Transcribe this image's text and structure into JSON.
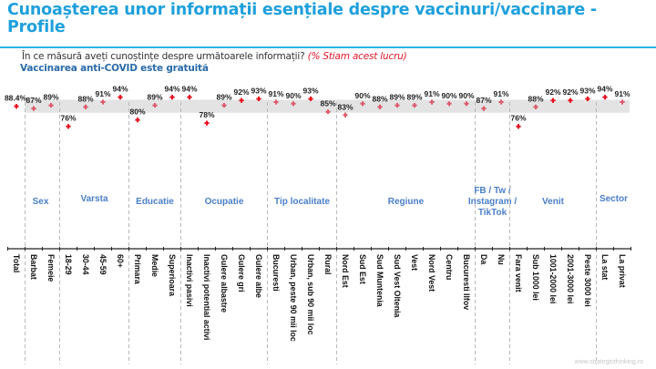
{
  "header": {
    "title": "Cunoașterea unor informații esențiale despre vaccinuri/vaccinare - Profile",
    "question": "În ce măsură aveți cunoștințe despre următoarele informații?",
    "question_highlight": "(% Stiam acest lucru)",
    "item": "Vaccinarea anti-COVID este gratuită"
  },
  "footer": {
    "source": "www.strategicthinking.ro"
  },
  "colors": {
    "title": "#1ea0dc",
    "outlier_dot": "#e8101e",
    "normal_dot": "#dc5a6c",
    "band": "#e3e3e3",
    "group_label": "#4a7fc8"
  },
  "chart_data": {
    "type": "scatter",
    "title": "Vaccinarea anti-COVID este gratuită",
    "ylabel": "% Stiam acest lucru",
    "ylim": [
      70,
      100
    ],
    "band": [
      84.4,
      92.4
    ],
    "groups": [
      {
        "name": "",
        "from": 0,
        "to": 0
      },
      {
        "name": "Sex",
        "from": 1,
        "to": 2
      },
      {
        "name": "Varsta",
        "from": 3,
        "to": 6
      },
      {
        "name": "Educatie",
        "from": 7,
        "to": 9
      },
      {
        "name": "Ocupatie",
        "from": 10,
        "to": 14
      },
      {
        "name": "Tip localitate",
        "from": 15,
        "to": 18
      },
      {
        "name": "Regiune",
        "from": 19,
        "to": 26
      },
      {
        "name": "FB / Tw / Instagram / TikTok",
        "from": 27,
        "to": 28
      },
      {
        "name": "Venit",
        "from": 29,
        "to": 33
      },
      {
        "name": "Sector",
        "from": 34,
        "to": 35
      }
    ],
    "categories": [
      "Total",
      "Barbat",
      "Femeie",
      "18-29",
      "30-44",
      "45-59",
      "60+",
      "Primara",
      "Medie",
      "Superioara",
      "Inactivi pasivi",
      "Inactivi potential activi",
      "Gulere albastre",
      "Gulere gri",
      "Gulere albe",
      "Bucuresti",
      "Urban, peste 90 mii loc",
      "Urban, sub 90 mii loc",
      "Rural",
      "Nord Est",
      "Sud Est",
      "Sud Muntenia",
      "Sud Vest Oltenia",
      "Vest",
      "Nord Vest",
      "Centru",
      "Bucuresti Ilfov",
      "Da",
      "Nu",
      "Fara venit",
      "Sub 1000 lei",
      "1001-2000 lei",
      "2001-3000 lei",
      "Peste 3000 lei",
      "La stat",
      "La privat"
    ],
    "values": [
      88.4,
      87,
      89,
      76,
      88,
      91,
      94,
      80,
      89,
      94,
      94,
      78,
      89,
      92,
      93,
      91,
      90,
      93,
      85,
      83,
      90,
      88,
      89,
      89,
      91,
      90,
      90,
      87,
      91,
      76,
      88,
      92,
      92,
      93,
      94,
      91
    ],
    "labels": [
      "88.4%",
      "87%",
      "89%",
      "76%",
      "88%",
      "91%",
      "94%",
      "80%",
      "89%",
      "94%",
      "94%",
      "78%",
      "89%",
      "92%",
      "93%",
      "91%",
      "90%",
      "93%",
      "85%",
      "83%",
      "90%",
      "88%",
      "89%",
      "89%",
      "91%",
      "90%",
      "90%",
      "87%",
      "91%",
      "76%",
      "88%",
      "92%",
      "92%",
      "93%",
      "94%",
      "91%"
    ],
    "highlight": [
      true,
      false,
      false,
      true,
      false,
      false,
      true,
      true,
      false,
      true,
      true,
      true,
      false,
      true,
      true,
      false,
      false,
      true,
      false,
      false,
      false,
      false,
      false,
      false,
      false,
      false,
      false,
      false,
      false,
      true,
      false,
      true,
      true,
      true,
      true,
      false
    ]
  }
}
